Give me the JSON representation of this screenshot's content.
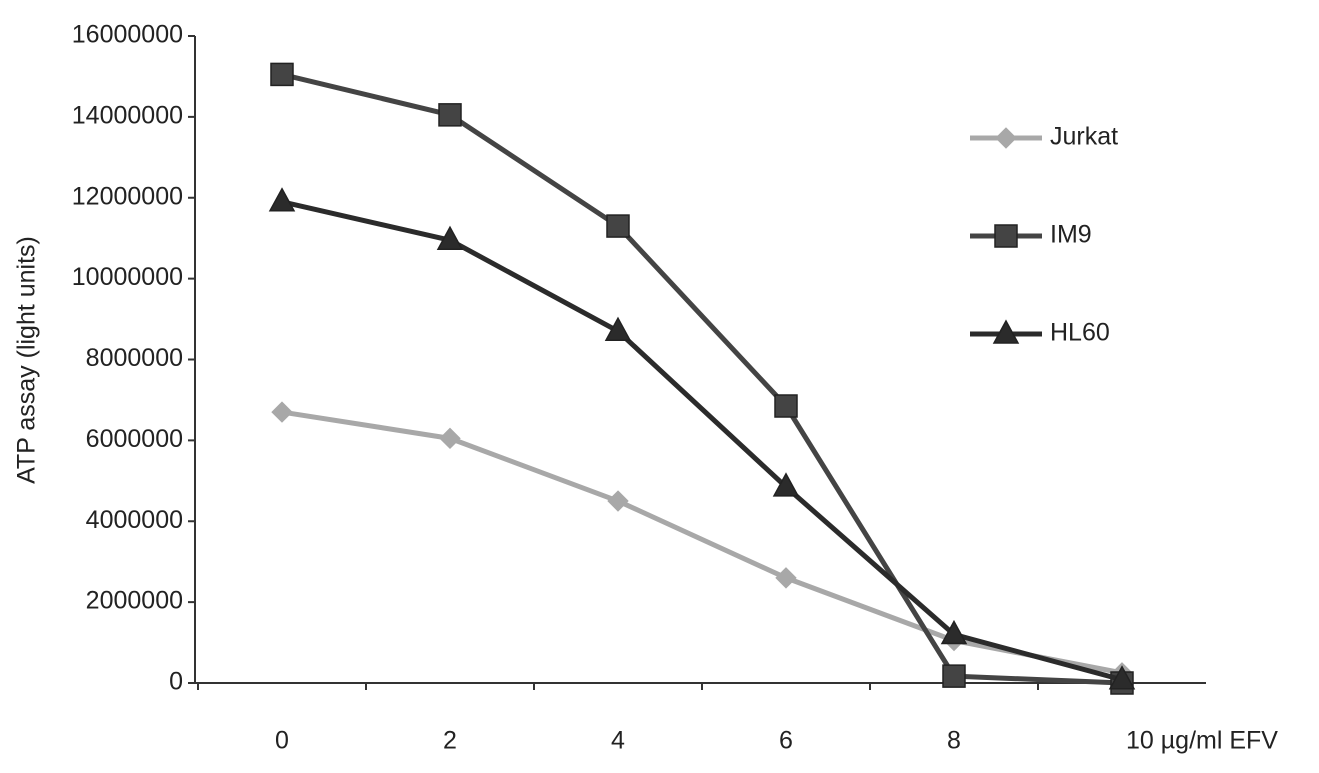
{
  "chart_data": {
    "type": "line",
    "y_label": "ATP assay (light units)",
    "categories": [
      "0",
      "2",
      "4",
      "6",
      "8",
      "10 µg/ml EFV"
    ],
    "series": [
      {
        "name": "Jurkat",
        "color": "#a8a8a8",
        "marker": "diamond",
        "values": [
          6700000,
          6050000,
          4500000,
          2600000,
          1050000,
          250000
        ]
      },
      {
        "name": "IM9",
        "color": "#444444",
        "marker": "square",
        "values": [
          15050000,
          14050000,
          11300000,
          6850000,
          170000,
          0
        ]
      },
      {
        "name": "HL60",
        "color": "#2b2b2b",
        "marker": "triangle",
        "values": [
          11900000,
          10950000,
          8700000,
          4850000,
          1200000,
          80000
        ]
      }
    ],
    "ylim": [
      0,
      16000000
    ],
    "yticks": [
      0,
      2000000,
      4000000,
      6000000,
      8000000,
      10000000,
      12000000,
      14000000,
      16000000
    ],
    "grid": false,
    "legend": "right"
  }
}
